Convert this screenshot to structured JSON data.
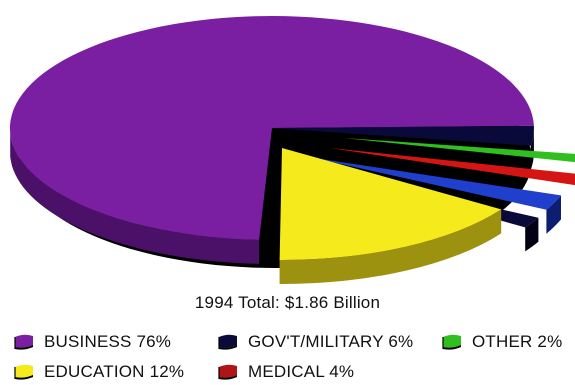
{
  "chart_data": {
    "type": "pie",
    "title": "",
    "total_label": "1994 Total: $1.86 Billion",
    "slices": [
      {
        "label": "BUSINESS",
        "value": 76,
        "value_label": "76%",
        "color": "#7a1fa2",
        "side_color": "#4b1168",
        "exploded": false
      },
      {
        "label": "GOV'T/MILITARY",
        "value": 6,
        "value_label": "6%",
        "color": "#0a0a3a",
        "side_color": "#020214",
        "exploded": true
      },
      {
        "label": "OTHER",
        "value": 2,
        "value_label": "2%",
        "color": "#2fbf1f",
        "side_color": "#1d7a12",
        "exploded": true
      },
      {
        "label": "MEDICAL",
        "value": 4,
        "value_label": "4%",
        "color": "#d51414",
        "side_color": "#7e0a0a",
        "exploded": true
      },
      {
        "label": "BLUE (unlabeled)",
        "value": 0,
        "value_label": "",
        "color": "#1f3fcc",
        "side_color": "#0d1d6f",
        "exploded": true
      },
      {
        "label": "EDUCATION",
        "value": 12,
        "value_label": "12%",
        "color": "#f5ea1c",
        "side_color": "#9d9210",
        "exploded": true
      }
    ],
    "legend": [
      {
        "name": "BUSINESS",
        "pct": "76%",
        "text": "BUSINESS 76%",
        "color": "#7a1fa2"
      },
      {
        "name": "GOV'T/MILITARY",
        "pct": "6%",
        "text": "GOV'T/MILITARY 6%",
        "color": "#0a0a3a"
      },
      {
        "name": "OTHER",
        "pct": "2%",
        "text": "OTHER 2%",
        "color": "#2fbf1f"
      },
      {
        "name": "EDUCATION",
        "pct": "12%",
        "text": "EDUCATION 12%",
        "color": "#f5ea1c"
      },
      {
        "name": "MEDICAL",
        "pct": "4%",
        "text": "MEDICAL 4%",
        "color": "#b01414"
      }
    ]
  }
}
